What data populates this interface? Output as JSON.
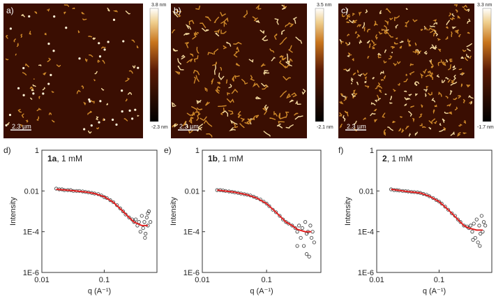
{
  "afm": [
    {
      "label": "a)",
      "max": "3.8 nm",
      "min": "-2.3 nm",
      "scale": "2.3 µm"
    },
    {
      "label": "b)",
      "max": "3.5 nm",
      "min": "-2.1 nm",
      "scale": "2.3 µm"
    },
    {
      "label": "c)",
      "max": "3.3 nm",
      "min": "-1.7 nm",
      "scale": "2.3 µm"
    }
  ],
  "chart_data": [
    {
      "type": "scatter",
      "panel": "d)",
      "sample": "1a",
      "annotation": ", 1 mM",
      "x_label": "q (A⁻¹)",
      "y_label": "Intensity",
      "log_x": true,
      "log_y": true,
      "xlim": [
        0.01,
        0.7
      ],
      "ylim": [
        1e-06,
        1
      ],
      "xticks": [
        0.01,
        0.1
      ],
      "yticks": [
        {
          "value": 1e-06,
          "label": "1E-6"
        },
        {
          "value": 0.0001,
          "label": "1E-4"
        },
        0.01,
        1
      ],
      "series": [
        {
          "color": "#333333",
          "x": [
            0.017,
            0.019,
            0.021,
            0.023,
            0.026,
            0.029,
            0.032,
            0.036,
            0.04,
            0.045,
            0.05,
            0.056,
            0.063,
            0.07,
            0.08,
            0.09,
            0.1,
            0.11,
            0.125,
            0.14,
            0.16,
            0.18,
            0.2,
            0.22,
            0.25,
            0.28,
            0.3,
            0.32,
            0.34,
            0.36,
            0.38,
            0.4,
            0.42,
            0.44,
            0.46,
            0.48,
            0.5,
            0.52,
            0.55,
            0.45,
            0.5
          ],
          "values": [
            0.013,
            0.012,
            0.012,
            0.011,
            0.011,
            0.011,
            0.01,
            0.01,
            0.01,
            0.0095,
            0.009,
            0.0085,
            0.008,
            0.0075,
            0.007,
            0.006,
            0.005,
            0.0045,
            0.0035,
            0.0028,
            0.002,
            0.0014,
            0.001,
            0.0007,
            0.0005,
            0.0004,
            0.0003,
            0.0004,
            0.0002,
            0.0003,
            0.0001,
            0.0006,
            0.00015,
            0.0003,
            8e-05,
            0.0005,
            0.0002,
            0.001,
            0.0003,
            5e-05,
            0.0008
          ]
        },
        {
          "color": "#e02020",
          "line": true,
          "x": [
            0.017,
            0.03,
            0.05,
            0.07,
            0.1,
            0.14,
            0.2,
            0.25,
            0.3,
            0.4,
            0.5
          ],
          "values": [
            0.012,
            0.0105,
            0.009,
            0.0075,
            0.0052,
            0.0028,
            0.001,
            0.0005,
            0.0003,
            0.0002,
            0.0002
          ]
        }
      ]
    },
    {
      "type": "scatter",
      "panel": "e)",
      "sample": "1b",
      "annotation": ", 1 mM",
      "x_label": "q (A⁻¹)",
      "y_label": "Intensity",
      "log_x": true,
      "log_y": true,
      "xlim": [
        0.01,
        0.7
      ],
      "ylim": [
        1e-06,
        1
      ],
      "xticks": [
        0.01,
        0.1
      ],
      "yticks": [
        {
          "value": 1e-06,
          "label": "1E-6"
        },
        {
          "value": 0.0001,
          "label": "1E-4"
        },
        0.01,
        1
      ],
      "series": [
        {
          "color": "#333333",
          "x": [
            0.017,
            0.019,
            0.021,
            0.023,
            0.026,
            0.029,
            0.032,
            0.036,
            0.04,
            0.045,
            0.05,
            0.056,
            0.063,
            0.07,
            0.08,
            0.09,
            0.1,
            0.11,
            0.125,
            0.14,
            0.16,
            0.18,
            0.2,
            0.22,
            0.25,
            0.28,
            0.3,
            0.32,
            0.34,
            0.36,
            0.38,
            0.4,
            0.42,
            0.44,
            0.46,
            0.48,
            0.5,
            0.52,
            0.55,
            0.3,
            0.42
          ],
          "values": [
            0.011,
            0.011,
            0.0105,
            0.01,
            0.0095,
            0.009,
            0.0085,
            0.008,
            0.0075,
            0.007,
            0.0065,
            0.006,
            0.0052,
            0.0045,
            0.0038,
            0.003,
            0.0024,
            0.0018,
            0.0012,
            0.0009,
            0.0006,
            0.0004,
            0.0003,
            0.00025,
            0.0002,
            0.00015,
            0.0001,
            0.0002,
            5e-05,
            0.00015,
            2e-05,
            0.0003,
            8e-05,
            0.0001,
            6e-06,
            0.0002,
            5e-05,
            0.0001,
            3e-05,
            2e-05,
            8e-06
          ]
        },
        {
          "color": "#e02020",
          "line": true,
          "x": [
            0.017,
            0.03,
            0.05,
            0.07,
            0.1,
            0.14,
            0.2,
            0.25,
            0.3,
            0.4,
            0.5
          ],
          "values": [
            0.011,
            0.009,
            0.0065,
            0.0045,
            0.0024,
            0.0009,
            0.0003,
            0.0002,
            0.00013,
            0.0001,
            0.0001
          ]
        }
      ]
    },
    {
      "type": "scatter",
      "panel": "f)",
      "sample": "2",
      "annotation": ", 1 mM",
      "x_label": "q (A⁻¹)",
      "y_label": "Intensity",
      "log_x": true,
      "log_y": true,
      "xlim": [
        0.01,
        0.7
      ],
      "ylim": [
        1e-06,
        1
      ],
      "xticks": [
        0.01,
        0.1
      ],
      "yticks": [
        {
          "value": 1e-06,
          "label": "1E-6"
        },
        {
          "value": 0.0001,
          "label": "1E-4"
        },
        0.01,
        1
      ],
      "series": [
        {
          "color": "#333333",
          "x": [
            0.017,
            0.019,
            0.021,
            0.023,
            0.026,
            0.029,
            0.032,
            0.036,
            0.04,
            0.045,
            0.05,
            0.056,
            0.063,
            0.07,
            0.08,
            0.09,
            0.1,
            0.11,
            0.125,
            0.14,
            0.16,
            0.18,
            0.2,
            0.22,
            0.25,
            0.28,
            0.3,
            0.32,
            0.34,
            0.36,
            0.38,
            0.4,
            0.42,
            0.44,
            0.46,
            0.48,
            0.5,
            0.52,
            0.55,
            0.45,
            0.35
          ],
          "values": [
            0.012,
            0.011,
            0.011,
            0.0105,
            0.01,
            0.0098,
            0.0095,
            0.009,
            0.0088,
            0.0085,
            0.008,
            0.0072,
            0.0065,
            0.0055,
            0.0045,
            0.0036,
            0.003,
            0.0024,
            0.0017,
            0.0012,
            0.0008,
            0.0006,
            0.0004,
            0.0003,
            0.0002,
            0.00018,
            0.00015,
            0.0002,
            0.0001,
            0.00025,
            5e-05,
            0.0004,
            3e-05,
            0.0002,
            8e-05,
            0.0006,
            0.0001,
            0.0003,
            0.0002,
            2e-05,
            4e-05
          ]
        },
        {
          "color": "#e02020",
          "line": true,
          "x": [
            0.017,
            0.03,
            0.05,
            0.07,
            0.1,
            0.14,
            0.2,
            0.25,
            0.3,
            0.4,
            0.5
          ],
          "values": [
            0.012,
            0.0095,
            0.008,
            0.0055,
            0.003,
            0.0012,
            0.0004,
            0.0002,
            0.00015,
            0.00012,
            0.00012
          ]
        }
      ]
    }
  ]
}
